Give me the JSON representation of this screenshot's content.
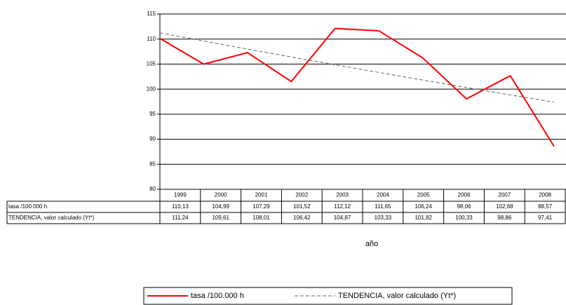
{
  "chart_data": {
    "type": "line",
    "categories": [
      "1999",
      "2000",
      "2001",
      "2002",
      "2003",
      "2004",
      "2005",
      "2006",
      "2007",
      "2008"
    ],
    "series": [
      {
        "name": "tasa /100.000 h",
        "color": "#ff0000",
        "dash": false,
        "values": [
          110.13,
          104.99,
          107.29,
          101.52,
          112.12,
          111.65,
          106.24,
          98.06,
          102.68,
          88.57
        ],
        "value_labels": [
          "110,13",
          "104,99",
          "107,29",
          "101,52",
          "112,12",
          "111,65",
          "106,24",
          "98,06",
          "102,68",
          "88,57"
        ]
      },
      {
        "name": "TENDENCIA, valor calculado (Yt*)",
        "color": "#666666",
        "dash": true,
        "values": [
          111.24,
          109.61,
          108.01,
          106.42,
          104.87,
          103.33,
          101.82,
          100.33,
          98.86,
          97.41
        ],
        "value_labels": [
          "111,24",
          "109,61",
          "108,01",
          "106,42",
          "104,87",
          "103,33",
          "101,82",
          "100,33",
          "98,86",
          "97,41"
        ]
      }
    ],
    "xlabel": "año",
    "ylim": [
      80,
      115
    ],
    "yticks": [
      80,
      85,
      90,
      95,
      100,
      105,
      110,
      115
    ],
    "grid": true
  }
}
